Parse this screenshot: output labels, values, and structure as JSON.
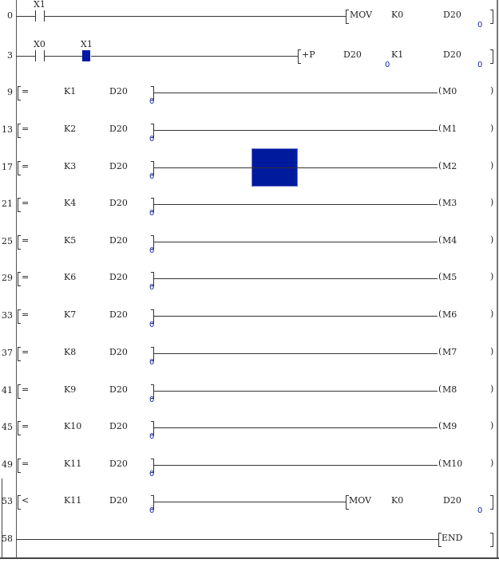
{
  "colors": {
    "cursor": "#001a9e",
    "value": "#1a2aa0"
  },
  "rungs": [
    {
      "step": "0",
      "kind": "contact",
      "contacts": [
        {
          "label": "X1",
          "type": "no-contact"
        }
      ],
      "instr": "MOV",
      "ops": [
        "K0",
        "D20"
      ],
      "vals": [
        "",
        "0"
      ]
    },
    {
      "step": "3",
      "kind": "contact",
      "contacts": [
        {
          "label": "X0",
          "type": "no-contact"
        },
        {
          "label": "X1",
          "type": "nc-contact-selected"
        }
      ],
      "instr": "+P",
      "ops": [
        "D20",
        "K1",
        "D20"
      ],
      "vals": [
        "",
        "0",
        "0"
      ]
    },
    {
      "step": "9",
      "kind": "compare",
      "op": "=",
      "a": "K1",
      "b": "D20",
      "val": "0",
      "coil": "M0"
    },
    {
      "step": "13",
      "kind": "compare",
      "op": "=",
      "a": "K2",
      "b": "D20",
      "val": "0",
      "coil": "M1"
    },
    {
      "step": "17",
      "kind": "compare",
      "op": "=",
      "a": "K3",
      "b": "D20",
      "val": "0",
      "coil": "M2"
    },
    {
      "step": "21",
      "kind": "compare",
      "op": "=",
      "a": "K4",
      "b": "D20",
      "val": "0",
      "coil": "M3"
    },
    {
      "step": "25",
      "kind": "compare",
      "op": "=",
      "a": "K5",
      "b": "D20",
      "val": "0",
      "coil": "M4"
    },
    {
      "step": "29",
      "kind": "compare",
      "op": "=",
      "a": "K6",
      "b": "D20",
      "val": "0",
      "coil": "M5"
    },
    {
      "step": "33",
      "kind": "compare",
      "op": "=",
      "a": "K7",
      "b": "D20",
      "val": "0",
      "coil": "M6"
    },
    {
      "step": "37",
      "kind": "compare",
      "op": "=",
      "a": "K8",
      "b": "D20",
      "val": "0",
      "coil": "M7"
    },
    {
      "step": "41",
      "kind": "compare",
      "op": "=",
      "a": "K9",
      "b": "D20",
      "val": "0",
      "coil": "M8"
    },
    {
      "step": "45",
      "kind": "compare",
      "op": "=",
      "a": "K10",
      "b": "D20",
      "val": "0",
      "coil": "M9"
    },
    {
      "step": "49",
      "kind": "compare",
      "op": "=",
      "a": "K11",
      "b": "D20",
      "val": "0",
      "coil": "M10"
    },
    {
      "step": "53",
      "kind": "compare-mov",
      "op": "<",
      "a": "K11",
      "b": "D20",
      "val": "0",
      "instr": "MOV",
      "ops": [
        "K0",
        "D20"
      ],
      "opval": "0"
    },
    {
      "step": "58",
      "kind": "end",
      "instr": "END"
    }
  ]
}
